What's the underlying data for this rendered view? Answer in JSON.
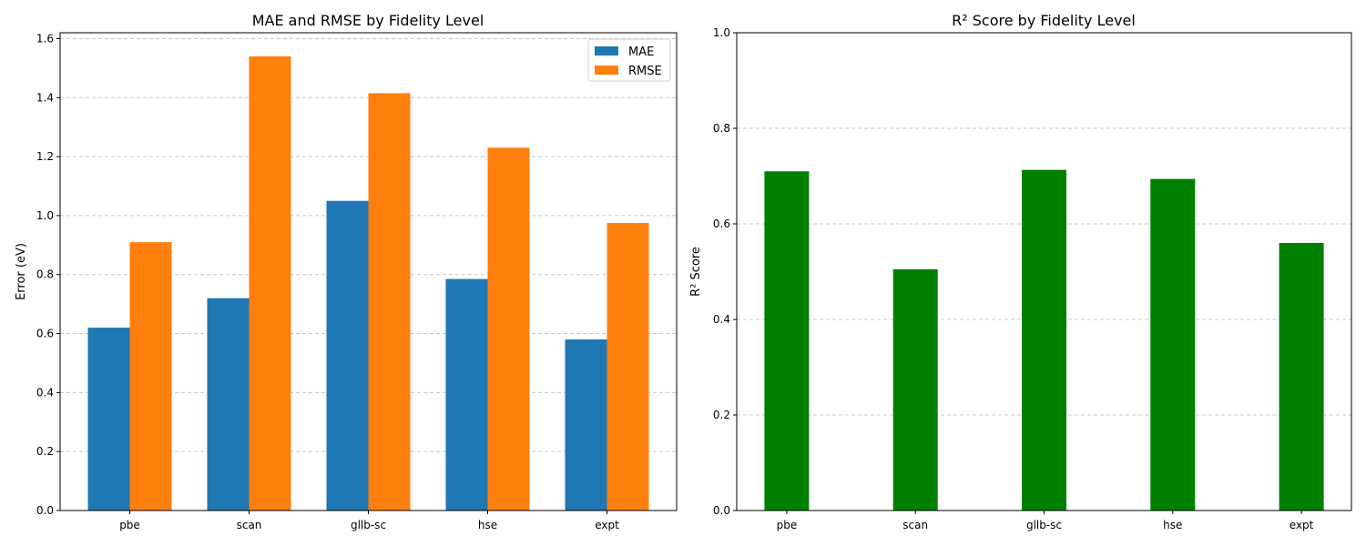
{
  "chart_data": [
    {
      "type": "bar",
      "title": "MAE and RMSE by Fidelity Level",
      "xlabel": "",
      "ylabel": "Error (eV)",
      "categories": [
        "pbe",
        "scan",
        "gllb-sc",
        "hse",
        "expt"
      ],
      "series": [
        {
          "name": "MAE",
          "color": "#1f77b4",
          "values": [
            0.62,
            0.72,
            1.05,
            0.785,
            0.58
          ]
        },
        {
          "name": "RMSE",
          "color": "#ff7f0e",
          "values": [
            0.91,
            1.54,
            1.415,
            1.23,
            0.975
          ]
        }
      ],
      "ylim": [
        0,
        1.62
      ],
      "yticks": [
        "0.0",
        "0.2",
        "0.4",
        "0.6",
        "0.8",
        "1.0",
        "1.2",
        "1.4",
        "1.6"
      ],
      "grid": "y-dashed",
      "legend": "top-right"
    },
    {
      "type": "bar",
      "title": "R² Score by Fidelity Level",
      "xlabel": "",
      "ylabel": "R² Score",
      "categories": [
        "pbe",
        "scan",
        "gllb-sc",
        "hse",
        "expt"
      ],
      "series": [
        {
          "color": "#008000",
          "values": [
            0.71,
            0.505,
            0.713,
            0.694,
            0.56
          ]
        }
      ],
      "ylim": [
        0,
        1.0
      ],
      "yticks": [
        "0.0",
        "0.2",
        "0.4",
        "0.6",
        "0.8",
        "1.0"
      ],
      "grid": "y-dashed",
      "legend": "none"
    }
  ]
}
